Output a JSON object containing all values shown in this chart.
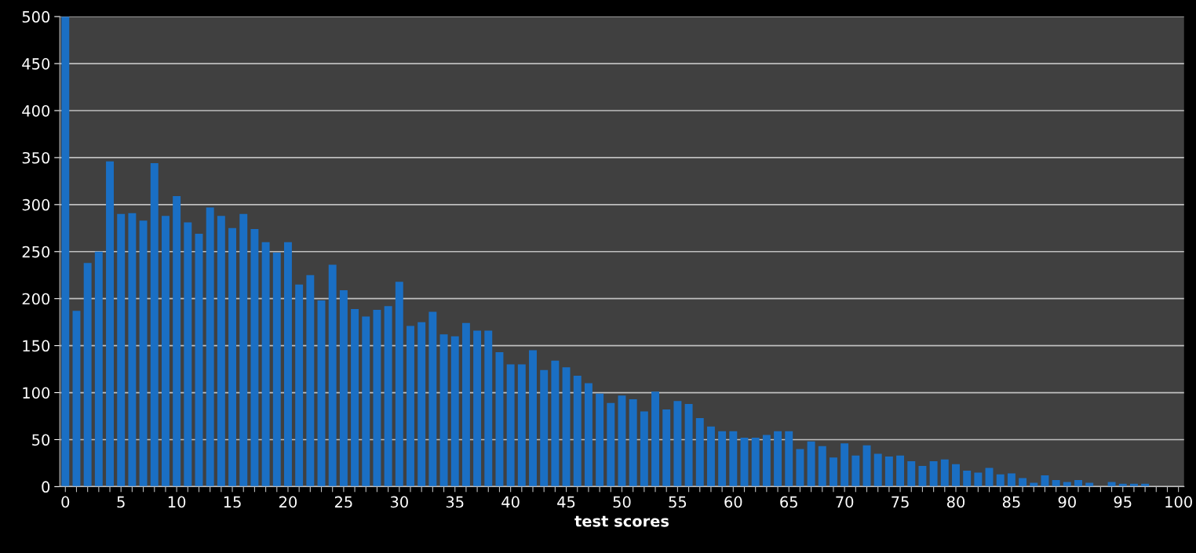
{
  "chart_data": {
    "type": "bar",
    "xlabel": "test scores",
    "categories": [
      "0",
      null,
      null,
      null,
      null,
      "5",
      null,
      null,
      null,
      null,
      "10",
      null,
      null,
      null,
      null,
      "15",
      null,
      null,
      null,
      null,
      "20",
      null,
      null,
      null,
      null,
      "25",
      null,
      null,
      null,
      null,
      "30",
      null,
      null,
      null,
      null,
      "35",
      null,
      null,
      null,
      null,
      "40",
      null,
      null,
      null,
      null,
      "45",
      null,
      null,
      null,
      null,
      "50",
      null,
      null,
      null,
      null,
      "55",
      null,
      null,
      null,
      null,
      "60",
      null,
      null,
      null,
      null,
      "65",
      null,
      null,
      null,
      null,
      "70",
      null,
      null,
      null,
      null,
      "75",
      null,
      null,
      null,
      null,
      "80",
      null,
      null,
      null,
      null,
      "85",
      null,
      null,
      null,
      null,
      "90",
      null,
      null,
      null,
      null,
      "95",
      null,
      null,
      null,
      null,
      "100"
    ],
    "values": [
      500,
      187,
      238,
      250,
      346,
      290,
      291,
      283,
      344,
      288,
      309,
      281,
      269,
      297,
      288,
      275,
      290,
      274,
      260,
      249,
      260,
      215,
      225,
      198,
      236,
      209,
      189,
      181,
      188,
      192,
      218,
      171,
      175,
      186,
      162,
      160,
      174,
      166,
      166,
      143,
      130,
      130,
      145,
      124,
      134,
      127,
      118,
      110,
      99,
      89,
      97,
      93,
      80,
      101,
      82,
      91,
      88,
      73,
      64,
      59,
      59,
      52,
      52,
      55,
      59,
      59,
      40,
      48,
      43,
      31,
      46,
      33,
      44,
      35,
      32,
      33,
      27,
      22,
      27,
      29,
      24,
      17,
      15,
      20,
      13,
      14,
      9,
      4,
      12,
      7,
      5,
      7,
      4,
      0,
      5,
      3,
      3,
      3,
      0,
      0,
      0
    ],
    "color": "#1a6fc4",
    "ylim": [
      0,
      500
    ],
    "yticks": [
      0,
      50,
      100,
      150,
      200,
      250,
      300,
      350,
      400,
      450,
      500
    ],
    "grid": "y"
  }
}
